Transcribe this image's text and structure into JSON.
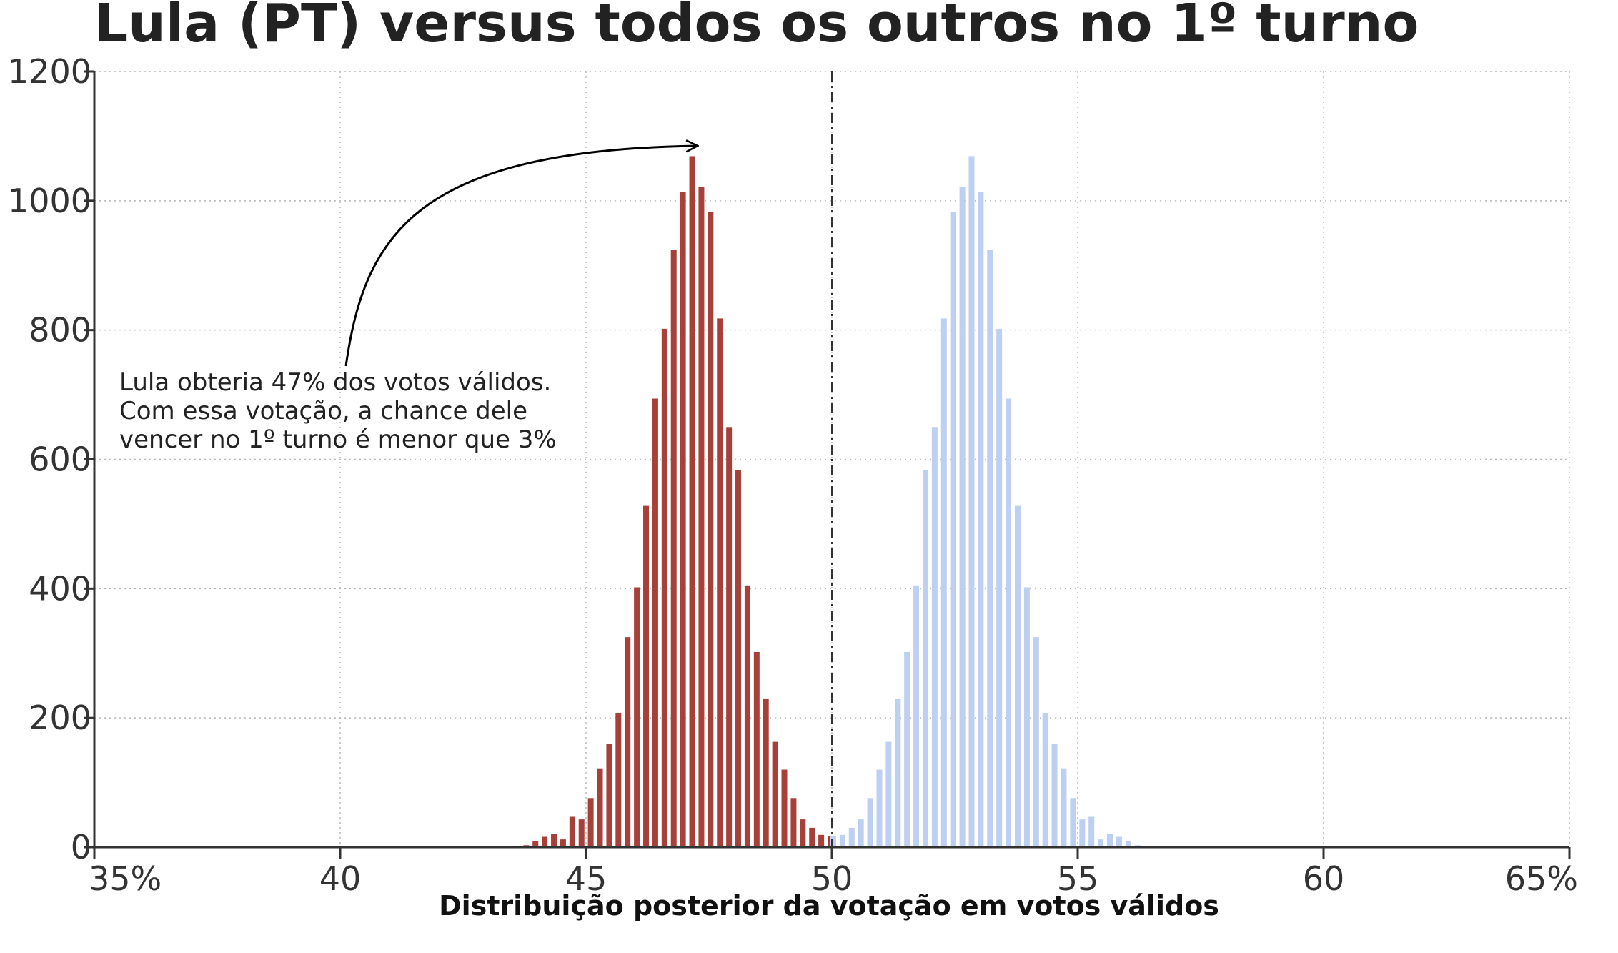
{
  "chart_data": {
    "type": "bar",
    "title": "Lula (PT) versus todos os outros no 1º turno",
    "xlabel": "Distribuição posterior da votação em votos válidos",
    "ylabel": "",
    "xlim": [
      35,
      65
    ],
    "ylim": [
      0,
      1200
    ],
    "x_ticks": [
      {
        "value": 35,
        "label": "35%"
      },
      {
        "value": 40,
        "label": "40"
      },
      {
        "value": 45,
        "label": "45"
      },
      {
        "value": 50,
        "label": "50"
      },
      {
        "value": 55,
        "label": "55"
      },
      {
        "value": 60,
        "label": "60"
      },
      {
        "value": 65,
        "label": "65%"
      }
    ],
    "y_ticks": [
      0,
      200,
      400,
      600,
      800,
      1000,
      1200
    ],
    "grid": true,
    "reference_line": {
      "x": 50,
      "style": "dashed"
    },
    "bin_width": 0.1875,
    "bin_start": 43.69,
    "series": [
      {
        "color": "#a8403a",
        "values": [
          3,
          10,
          16,
          20,
          12,
          47,
          43,
          76,
          122,
          160,
          208,
          325,
          402,
          528,
          694,
          802,
          924,
          1014,
          1069,
          1021,
          983,
          818,
          650,
          583,
          405,
          302,
          229,
          163,
          120,
          76,
          43,
          30,
          19,
          17
        ]
      },
      {
        "color": "#bdd0f2",
        "values": [
          17,
          19,
          30,
          43,
          76,
          120,
          163,
          229,
          302,
          405,
          583,
          650,
          818,
          983,
          1021,
          1069,
          1014,
          924,
          802,
          694,
          528,
          402,
          325,
          208,
          160,
          122,
          76,
          43,
          47,
          12,
          20,
          16,
          10,
          3
        ]
      }
    ],
    "annotation": {
      "lines": [
        "Lula obteria 47% dos votos válidos.",
        "Com essa votação, a chance dele",
        "vencer no 1º turno é menor que 3%"
      ],
      "arrow_target": {
        "x": 47.3,
        "y": 1085
      }
    }
  }
}
